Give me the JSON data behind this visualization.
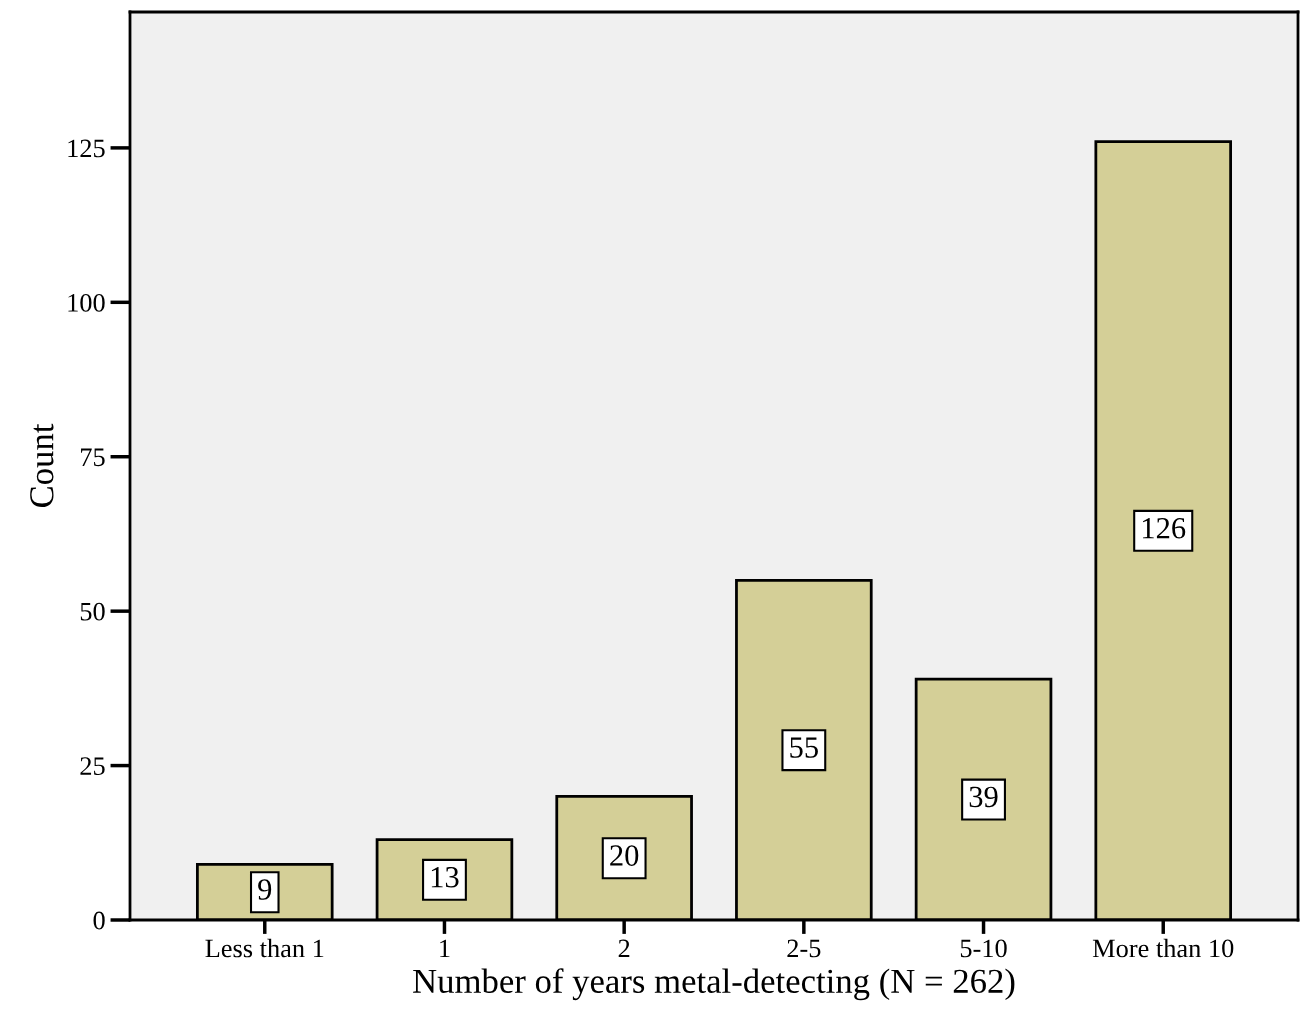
{
  "chart_data": {
    "type": "bar",
    "xlabel": "Number of years metal-detecting (N = 262)",
    "ylabel": "Count",
    "categories": [
      "Less than 1",
      "1",
      "2",
      "2-5",
      "5-10",
      "More than 10"
    ],
    "values": [
      9,
      13,
      20,
      55,
      39,
      126
    ],
    "color": "#d4cf97",
    "ylim": [
      0,
      147
    ],
    "yticks": [
      0,
      25,
      50,
      75,
      100,
      125
    ],
    "grid": false,
    "data_labels": true
  }
}
